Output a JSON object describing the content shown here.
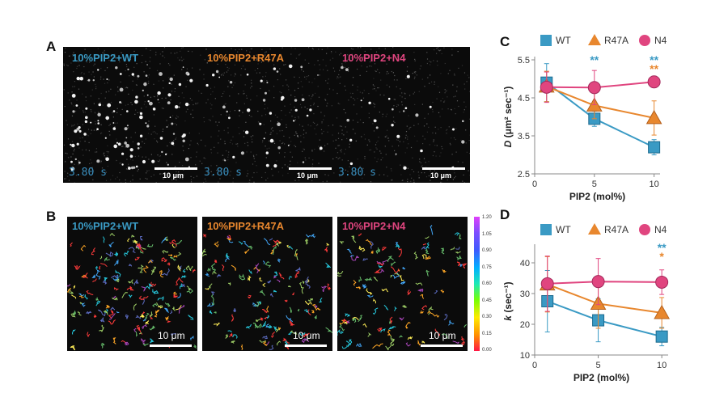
{
  "panels": {
    "a": "A",
    "b": "B",
    "c": "C",
    "d": "D"
  },
  "samples": [
    {
      "label": "10%PIP2+WT",
      "color": "#3a9ac4"
    },
    {
      "label": "10%PIP2+R47A",
      "color": "#e8872e"
    },
    {
      "label": "10%PIP2+N4",
      "color": "#e0457f"
    }
  ],
  "panel_a": {
    "time": "3.80 s",
    "scale_label": "10 μm"
  },
  "panel_b": {
    "scale_label": "10 μm",
    "colorbar_ticks": [
      "1.20",
      "1.05",
      "0.90",
      "0.75",
      "0.60",
      "0.45",
      "0.30",
      "0.15",
      "0.00"
    ]
  },
  "chart_data": [
    {
      "panel": "C",
      "type": "line",
      "xlabel": "PIP2 (mol%)",
      "ylabel_main": "D",
      "ylabel_unit": " (μm² sec⁻¹)",
      "x": [
        1,
        5,
        10
      ],
      "xticks": [
        "0",
        "5",
        "10"
      ],
      "yticks": [
        "2.5",
        "3.5",
        "4.5",
        "5.5"
      ],
      "ylim": [
        2.5,
        5.5
      ],
      "xlim": [
        0,
        10.5
      ],
      "legend": [
        "WT",
        "R47A",
        "N4"
      ],
      "legend_placement": "top",
      "series": [
        {
          "name": "WT",
          "marker": "square",
          "color": "#3a9ac4",
          "values": [
            4.9,
            3.95,
            3.2
          ],
          "err": [
            0.5,
            0.2,
            0.2
          ]
        },
        {
          "name": "R47A",
          "marker": "triangle",
          "color": "#e8872e",
          "values": [
            4.8,
            4.3,
            3.97
          ],
          "err": [
            0.4,
            0.35,
            0.45
          ]
        },
        {
          "name": "N4",
          "marker": "circle",
          "color": "#e0457f",
          "values": [
            4.78,
            4.77,
            4.92
          ],
          "err": [
            0.4,
            0.45,
            0.15
          ]
        }
      ],
      "annotations": [
        {
          "x": 5,
          "text": "**",
          "color": "#3a9ac4",
          "row": 0
        },
        {
          "x": 10,
          "text": "**",
          "color": "#3a9ac4",
          "row": 0
        },
        {
          "x": 10,
          "text": "**",
          "color": "#e8872e",
          "row": 1
        }
      ]
    },
    {
      "panel": "D",
      "type": "line",
      "xlabel": "PIP2 (mol%)",
      "ylabel_main": "k",
      "ylabel_unit": " (sec⁻¹)",
      "x": [
        1,
        5,
        10
      ],
      "xticks": [
        "0",
        "5",
        "10"
      ],
      "yticks": [
        "10",
        "20",
        "30",
        "40"
      ],
      "ylim": [
        10,
        45
      ],
      "xlim": [
        0,
        10.5
      ],
      "legend": [
        "WT",
        "R47A",
        "N4"
      ],
      "legend_placement": "top",
      "series": [
        {
          "name": "WT",
          "marker": "square",
          "color": "#3a9ac4",
          "values": [
            27.5,
            21.3,
            16
          ],
          "err": [
            10,
            7,
            3
          ]
        },
        {
          "name": "R47A",
          "marker": "triangle",
          "color": "#e8872e",
          "values": [
            33,
            26.7,
            23.7
          ],
          "err": [
            9,
            8,
            5
          ]
        },
        {
          "name": "N4",
          "marker": "circle",
          "color": "#e0457f",
          "values": [
            33.2,
            33.9,
            33.7
          ],
          "err": [
            9,
            7.5,
            4
          ]
        }
      ],
      "annotations": [
        {
          "x": 10,
          "text": "**",
          "color": "#3a9ac4",
          "row": 0
        },
        {
          "x": 10,
          "text": "*",
          "color": "#e8872e",
          "row": 1
        }
      ]
    }
  ]
}
